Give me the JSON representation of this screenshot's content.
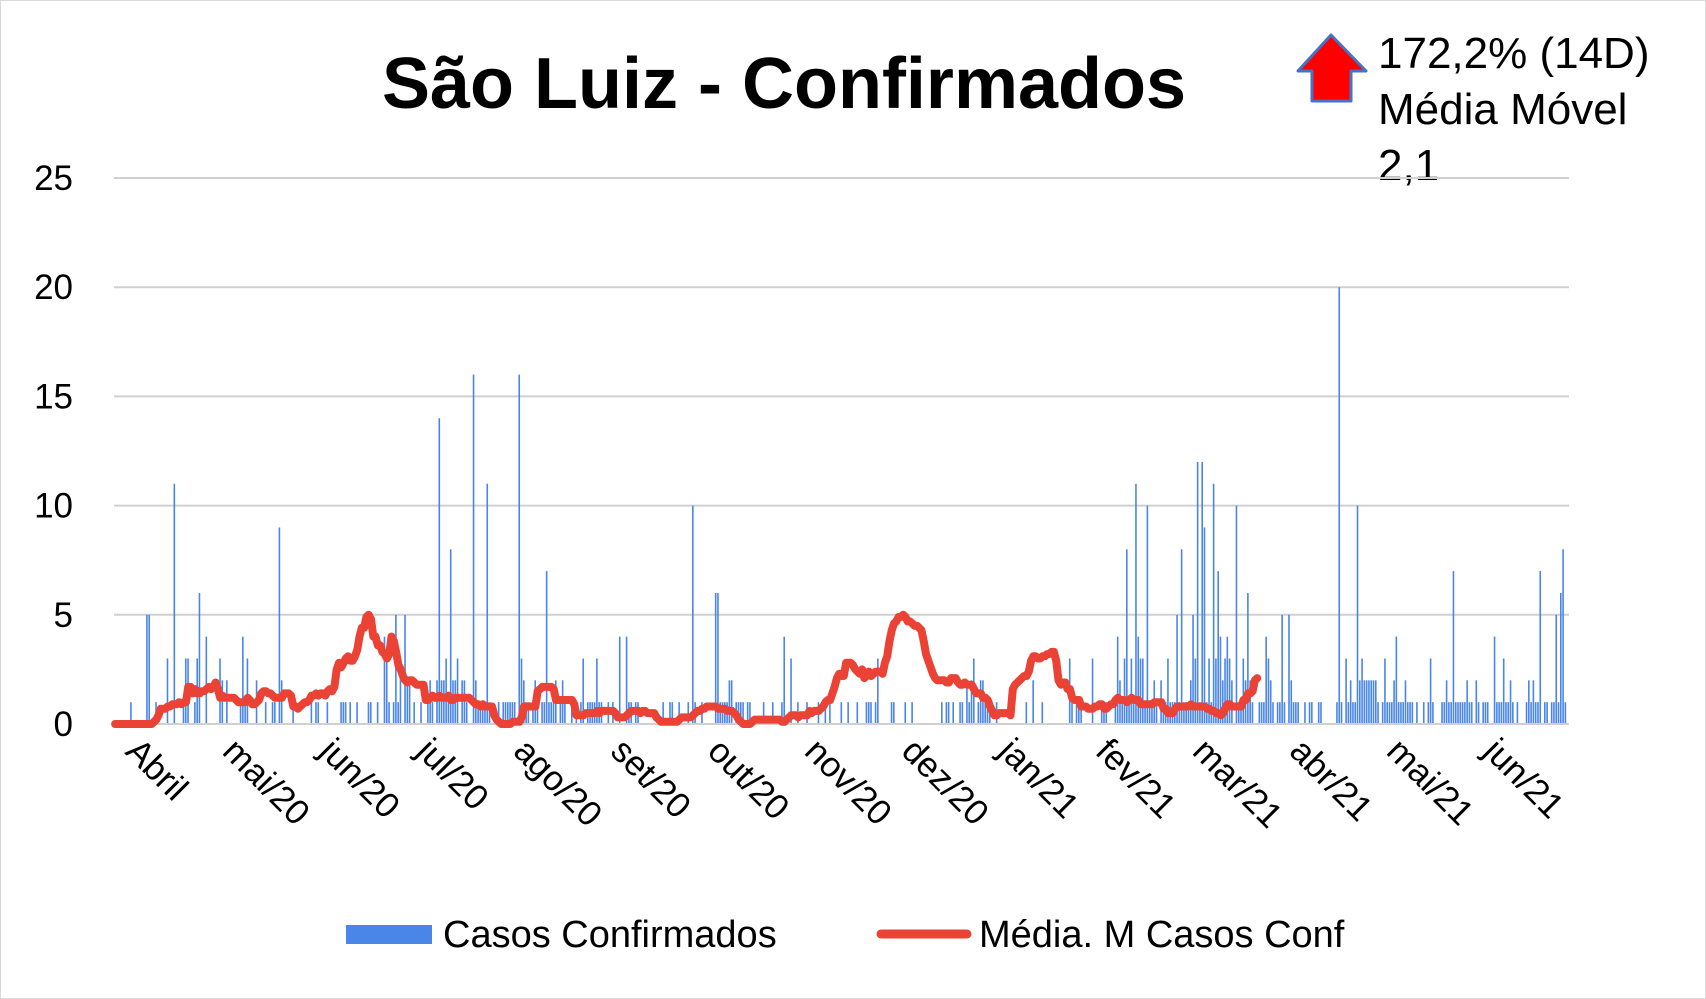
{
  "chart_data": {
    "type": "bar",
    "title": "São Luiz - Confirmados",
    "xlabel": "",
    "ylabel": "",
    "ylim": [
      0,
      25
    ],
    "yticks": [
      "0",
      "5",
      "10",
      "15",
      "20",
      "25"
    ],
    "grid": true,
    "legend_position": "bottom",
    "x_tick_labels": [
      "Abril",
      "mai/20",
      "jun/20",
      "jul/20",
      "ago/20",
      "set/20",
      "out/20",
      "nov/20",
      "dez/20",
      "jan/21",
      "fev/21",
      "mar/21",
      "abr/21",
      "mai/21",
      "jun/21"
    ],
    "annotation": {
      "line1": "172,2% (14D)",
      "line2": "Média Móvel",
      "line3": "2,1",
      "arrow": "up-arrow-icon",
      "arrow_color": "#ff0000",
      "arrow_border": "#4472c4"
    },
    "series": [
      {
        "name": "Casos Confirmados",
        "type": "bar",
        "color": "#4a86e8",
        "values": [
          0,
          0,
          0,
          0,
          0,
          0,
          0,
          1,
          0,
          0,
          0,
          0,
          0,
          0,
          5,
          5,
          0,
          0,
          1,
          0,
          0,
          0,
          0,
          3,
          0,
          0,
          11,
          0,
          0,
          0,
          1,
          3,
          3,
          0,
          0,
          1,
          3,
          6,
          0,
          0,
          4,
          0,
          0,
          0,
          0,
          0,
          3,
          2,
          0,
          2,
          0,
          0,
          0,
          0,
          0,
          1,
          4,
          1,
          3,
          0,
          0,
          0,
          2,
          0,
          0,
          0,
          1,
          0,
          0,
          1,
          1,
          0,
          9,
          2,
          0,
          0,
          0,
          0,
          1,
          0,
          0,
          0,
          0,
          0,
          0,
          0,
          1,
          0,
          1,
          1,
          0,
          0,
          0,
          1,
          0,
          0,
          0,
          0,
          0,
          1,
          1,
          1,
          0,
          1,
          0,
          0,
          1,
          0,
          0,
          0,
          0,
          1,
          1,
          0,
          0,
          1,
          0,
          0,
          4,
          3,
          1,
          0,
          1,
          5,
          1,
          3,
          0,
          5,
          2,
          2,
          0,
          1,
          0,
          0,
          1,
          0,
          0,
          1,
          2,
          1,
          0,
          2,
          14,
          2,
          2,
          3,
          1,
          8,
          2,
          2,
          3,
          0,
          2,
          2,
          1,
          0,
          0,
          16,
          2,
          1,
          1,
          1,
          1,
          11,
          1,
          0,
          0,
          0,
          1,
          0,
          1,
          1,
          1,
          1,
          1,
          1,
          0,
          16,
          3,
          2,
          1,
          1,
          0,
          1,
          2,
          1,
          0,
          1,
          1,
          7,
          1,
          1,
          1,
          2,
          0,
          1,
          2,
          1,
          0,
          0,
          1,
          0,
          1,
          0,
          1,
          3,
          0,
          1,
          1,
          1,
          1,
          3,
          1,
          1,
          0,
          0,
          1,
          0,
          1,
          0,
          0,
          4,
          0,
          0,
          4,
          1,
          1,
          0,
          1,
          1,
          0,
          0,
          0,
          0,
          0,
          0,
          0,
          0,
          0,
          0,
          1,
          0,
          0,
          1,
          1,
          0,
          0,
          1,
          0,
          0,
          0,
          1,
          0,
          10,
          1,
          0,
          0,
          1,
          0,
          0,
          0,
          0,
          0,
          6,
          6,
          1,
          1,
          1,
          1,
          2,
          2,
          0,
          1,
          1,
          1,
          1,
          0,
          1,
          1,
          0,
          0,
          0,
          0,
          0,
          1,
          0,
          0,
          0,
          1,
          0,
          0,
          0,
          1,
          4,
          0,
          0,
          3,
          0,
          0,
          1,
          0,
          0,
          0,
          1,
          0,
          0,
          0,
          0,
          1,
          0,
          0,
          1,
          0,
          1,
          0,
          0,
          0,
          0,
          1,
          0,
          0,
          1,
          0,
          0,
          0,
          1,
          0,
          0,
          0,
          1,
          1,
          1,
          0,
          1,
          3,
          0,
          0,
          0,
          0,
          0,
          1,
          1,
          0,
          0,
          0,
          0,
          1,
          0,
          0,
          1,
          0,
          0,
          0,
          0,
          0,
          0,
          0,
          0,
          0,
          0,
          0,
          0,
          1,
          0,
          1,
          1,
          0,
          1,
          0,
          0,
          1,
          1,
          0,
          2,
          1,
          2,
          3,
          0,
          1,
          2,
          2,
          1,
          1,
          1,
          0,
          0,
          1,
          0,
          0,
          0,
          0,
          0,
          0,
          0,
          0,
          0,
          0,
          0,
          0,
          1,
          0,
          0,
          2,
          0,
          0,
          0,
          1,
          0,
          0,
          0,
          0,
          0,
          0,
          0,
          0,
          0,
          0,
          0,
          3,
          1,
          0,
          1,
          1,
          1,
          0,
          0,
          0,
          0,
          3,
          0,
          0,
          0,
          1,
          1,
          1,
          0,
          0,
          0,
          1,
          4,
          2,
          1,
          3,
          8,
          1,
          3,
          1,
          11,
          4,
          3,
          3,
          1,
          10,
          1,
          1,
          2,
          1,
          0,
          2,
          1,
          1,
          3,
          1,
          1,
          1,
          5,
          1,
          8,
          1,
          1,
          1,
          2,
          5,
          3,
          12,
          1,
          12,
          9,
          1,
          3,
          1,
          11,
          3,
          7,
          4,
          2,
          3,
          4,
          3,
          2,
          0,
          10,
          1,
          1,
          3,
          2,
          6,
          2,
          1,
          0,
          0,
          1,
          1,
          1,
          4,
          3,
          2,
          1,
          0,
          1,
          1,
          5,
          1,
          0,
          5,
          2,
          1,
          1,
          1,
          0,
          0,
          1,
          0,
          1,
          1,
          0,
          0,
          1,
          1,
          0,
          0,
          0,
          0,
          0,
          0,
          1,
          20,
          1,
          0,
          3,
          1,
          2,
          1,
          1,
          10,
          2,
          3,
          2,
          2,
          2,
          2,
          2,
          2,
          1,
          0,
          1,
          3,
          1,
          1,
          1,
          2,
          4,
          1,
          1,
          1,
          2,
          1,
          1,
          1,
          0,
          1,
          0,
          0,
          1,
          0,
          1,
          3,
          1,
          0,
          0,
          0,
          1,
          1,
          2,
          1,
          1,
          7,
          1,
          1,
          1,
          1,
          1,
          2,
          1,
          1,
          0,
          2,
          1,
          0,
          1,
          1,
          1,
          0,
          0,
          4,
          1,
          1,
          1,
          3,
          1,
          1,
          2,
          1,
          0,
          1,
          0,
          0,
          0,
          1,
          2,
          1,
          2,
          1,
          1,
          7,
          0,
          1,
          1,
          0,
          1,
          1,
          5,
          1,
          6,
          8,
          1,
          0
        ]
      },
      {
        "name": "Média. M Casos Conf",
        "type": "line",
        "color": "#ea4335",
        "values": [
          0,
          0,
          0,
          0,
          0,
          0,
          0,
          0,
          0,
          0,
          0,
          0,
          0,
          0,
          0,
          0,
          0,
          0.1,
          0.2,
          0.4,
          0.7,
          0.7,
          0.7,
          0.8,
          0.8,
          0.9,
          0.9,
          0.9,
          1,
          0.9,
          1,
          1,
          1.7,
          1.7,
          1.4,
          1.6,
          1.4,
          1.4,
          1.5,
          1.5,
          1.6,
          1.7,
          1.6,
          1.7,
          1.9,
          1.6,
          1.2,
          1.3,
          1.2,
          1.2,
          1.2,
          1.2,
          1.2,
          1.1,
          1,
          1,
          1,
          1,
          1.2,
          1.1,
          0.9,
          0.9,
          1,
          1.1,
          1.4,
          1.5,
          1.5,
          1.4,
          1.4,
          1.3,
          1.2,
          1.2,
          1.2,
          1.2,
          1.4,
          1.4,
          1.4,
          1.3,
          0.8,
          0.8,
          0.7,
          0.8,
          0.9,
          1,
          1,
          1.1,
          1.3,
          1.3,
          1.4,
          1.3,
          1.4,
          1.4,
          1.3,
          1.5,
          1.6,
          1.5,
          1.7,
          2.5,
          2.8,
          2.6,
          2.8,
          3,
          3.1,
          2.9,
          2.9,
          3.1,
          3.4,
          4,
          4.4,
          4.4,
          4.9,
          5,
          4.8,
          4,
          4,
          3.6,
          3.6,
          3.3,
          3.2,
          3,
          3.2,
          4,
          3.8,
          3.3,
          2.7,
          2.5,
          2.2,
          2,
          1.9,
          2,
          2,
          1.9,
          1.8,
          1.8,
          1.8,
          1.8,
          1.1,
          1.1,
          1.2,
          1.3,
          1.2,
          1.2,
          1.3,
          1.2,
          1.2,
          1.2,
          1.3,
          1.1,
          1.1,
          1.2,
          1.2,
          1.2,
          1.2,
          1.2,
          1.2,
          1.2,
          1.1,
          1,
          0.9,
          0.9,
          0.8,
          0.9,
          0.8,
          0.8,
          0.8,
          0.8,
          0.4,
          0.2,
          0.1,
          0,
          0,
          0,
          0,
          0,
          0.1,
          0.1,
          0.1,
          0.1,
          0.3,
          0.8,
          0.8,
          0.8,
          0.8,
          0.8,
          0.8,
          1.5,
          1.6,
          1.7,
          1.7,
          1.7,
          1.7,
          1.7,
          1.6,
          1.1,
          1.1,
          1.1,
          1.1,
          1.1,
          1.1,
          1.1,
          1.1,
          0.9,
          0.4,
          0.4,
          0.4,
          0.4,
          0.5,
          0.5,
          0.5,
          0.5,
          0.5,
          0.6,
          0.5,
          0.6,
          0.6,
          0.6,
          0.6,
          0.6,
          0.6,
          0.5,
          0.3,
          0.3,
          0.3,
          0.3,
          0.4,
          0.5,
          0.6,
          0.6,
          0.6,
          0.6,
          0.5,
          0.6,
          0.6,
          0.5,
          0.5,
          0.5,
          0.5,
          0.3,
          0.2,
          0.1,
          0.1,
          0.1,
          0.1,
          0.1,
          0.1,
          0.1,
          0.1,
          0.2,
          0.3,
          0.3,
          0.3,
          0.3,
          0.3,
          0.4,
          0.5,
          0.6,
          0.6,
          0.7,
          0.7,
          0.8,
          0.8,
          0.8,
          0.8,
          0.8,
          0.7,
          0.7,
          0.7,
          0.7,
          0.6,
          0.6,
          0.6,
          0.5,
          0.4,
          0.2,
          0.1,
          0,
          0,
          0,
          0,
          0.1,
          0.2,
          0.2,
          0.2,
          0.2,
          0.2,
          0.2,
          0.2,
          0.2,
          0.2,
          0.2,
          0.2,
          0.2,
          0.1,
          0.1,
          0.2,
          0.3,
          0.4,
          0.4,
          0.4,
          0.3,
          0.4,
          0.4,
          0.4,
          0.4,
          0.6,
          0.5,
          0.6,
          0.6,
          0.6,
          0.7,
          0.8,
          1,
          1.1,
          1.1,
          1.4,
          1.7,
          2.1,
          2.3,
          2.2,
          2.2,
          2.8,
          2.8,
          2.8,
          2.7,
          2.5,
          2.4,
          2.3,
          2.5,
          2.1,
          2.2,
          2.4,
          2.2,
          2.3,
          2.4,
          2.4,
          2.4,
          2.3,
          2.8,
          3.1,
          3.8,
          4.3,
          4.6,
          4.7,
          4.9,
          4.9,
          5,
          4.9,
          4.7,
          4.7,
          4.6,
          4.5,
          4.5,
          4.4,
          4.3,
          3.8,
          3.2,
          2.9,
          2.6,
          2.3,
          2.1,
          2,
          2,
          2,
          2,
          1.9,
          1.9,
          2.1,
          2.1,
          2.1,
          1.9,
          1.8,
          1.8,
          1.9,
          1.8,
          1.8,
          1.8,
          1.6,
          1.4,
          1.4,
          1.4,
          1.2,
          1.2,
          1.1,
          0.8,
          0.6,
          0.4,
          0.4,
          0.5,
          0.5,
          0.5,
          0.5,
          0.5,
          0.4,
          1.6,
          1.8,
          1.9,
          2,
          2.1,
          2.2,
          2.2,
          2.4,
          2.9,
          3.1,
          3.1,
          3,
          3,
          3.1,
          3.1,
          3.2,
          3.2,
          3.3,
          3.3,
          2.9,
          2,
          1.8,
          1.9,
          1.9,
          1.6,
          1.6,
          1.2,
          1.1,
          1.1,
          1.1,
          0.8,
          0.8,
          0.8,
          0.7,
          0.7,
          0.7,
          0.8,
          0.8,
          0.9,
          0.9,
          0.7,
          0.7,
          0.8,
          0.9,
          0.9,
          1.1,
          1.2,
          1.1,
          1.1,
          1.1,
          1,
          1.1,
          1.2,
          1.1,
          1.1,
          1.1,
          0.9,
          0.9,
          0.9,
          0.9,
          0.9,
          0.9,
          1,
          1,
          1,
          1,
          0.7,
          0.7,
          0.5,
          0.5,
          0.5,
          0.7,
          0.8,
          0.8,
          0.8,
          0.8,
          0.8,
          0.8,
          0.9,
          0.8,
          0.8,
          0.8,
          0.8,
          0.8,
          0.8,
          0.7,
          0.7,
          0.6,
          0.6,
          0.5,
          0.5,
          0.4,
          0.5,
          0.7,
          0.9,
          0.9,
          0.8,
          0.8,
          0.8,
          0.8,
          0.8,
          1.1,
          1.1,
          1.4,
          1.4,
          1.5,
          2,
          2.1
        ]
      }
    ]
  }
}
